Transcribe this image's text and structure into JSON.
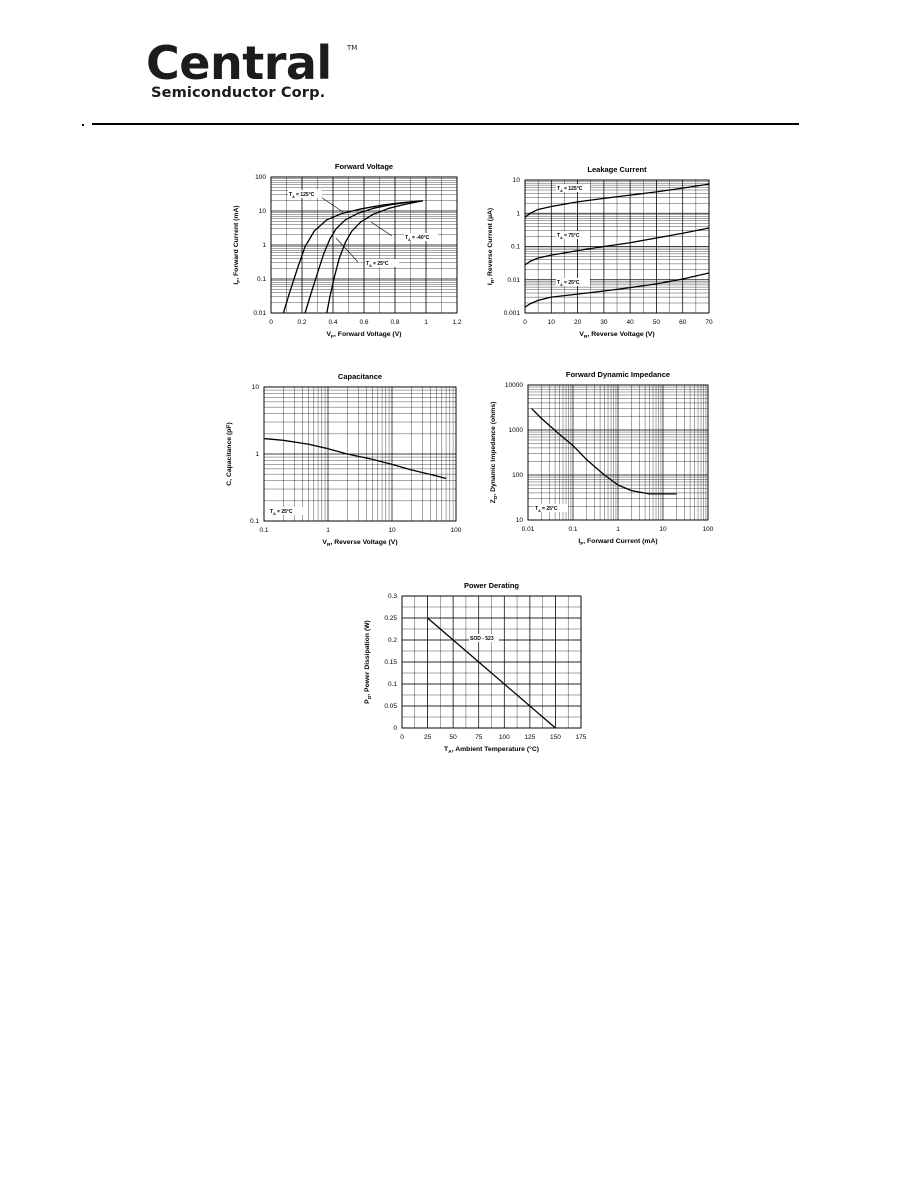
{
  "header": {
    "logo_main": "Central",
    "logo_tm": "TM",
    "logo_sub": "Semiconductor Corp."
  },
  "chart_data": [
    {
      "id": "forward-voltage",
      "type": "line",
      "title": "Forward Voltage",
      "ylabel_sym": "I",
      "ylabel_sub": "F",
      "ylabel_rest": ", Forward Current (mA)",
      "xlabel_sym": "V",
      "xlabel_sub": "F",
      "xlabel_rest": ", Forward Voltage (V)",
      "xscale": "linear",
      "yscale": "log",
      "xlim": [
        0,
        1.2
      ],
      "ylim": [
        0.01,
        100
      ],
      "xticks": [
        0,
        0.2,
        0.4,
        0.6,
        0.8,
        1,
        1.2
      ],
      "xtick_labels": [
        "0",
        "0.2",
        "0.4",
        "0.6",
        "0.8",
        "1",
        "1.2"
      ],
      "yticks": [
        0.01,
        0.1,
        1,
        10,
        100
      ],
      "ytick_labels": [
        "0.01",
        "0.1",
        "1",
        "10",
        "100"
      ],
      "series": [
        {
          "name": "TA = 125°C",
          "x": [
            0.08,
            0.12,
            0.17,
            0.22,
            0.28,
            0.36,
            0.46,
            0.58,
            0.72,
            0.84,
            0.98
          ],
          "y": [
            0.01,
            0.04,
            0.2,
            0.9,
            2.6,
            5.5,
            8.5,
            11.5,
            15,
            17.5,
            20
          ]
        },
        {
          "name": "TA = 25°C",
          "x": [
            0.22,
            0.26,
            0.3,
            0.34,
            0.38,
            0.42,
            0.48,
            0.56,
            0.66,
            0.78,
            0.96
          ],
          "y": [
            0.01,
            0.04,
            0.15,
            0.55,
            1.5,
            3,
            5.5,
            8.5,
            12,
            15.5,
            20
          ]
        },
        {
          "name": "TA = -40°C",
          "x": [
            0.36,
            0.38,
            0.41,
            0.44,
            0.48,
            0.52,
            0.58,
            0.66,
            0.76,
            0.86,
            0.98
          ],
          "y": [
            0.01,
            0.03,
            0.12,
            0.4,
            1.2,
            2.5,
            4.8,
            8,
            12,
            15.5,
            20
          ]
        }
      ],
      "annotations": [
        {
          "sym": "T",
          "sub": "A",
          "rest": " = 125°C"
        },
        {
          "sym": "T",
          "sub": "A",
          "rest": " = -40°C"
        },
        {
          "sym": "T",
          "sub": "A",
          "rest": " = 25°C"
        }
      ]
    },
    {
      "id": "leakage-current",
      "type": "line",
      "title": "Leakage Current",
      "ylabel_sym": "I",
      "ylabel_sub": "R",
      "ylabel_rest": ", Reverse Current (µA)",
      "xlabel_sym": "V",
      "xlabel_sub": "R",
      "xlabel_rest": ", Reverse Voltage (V)",
      "xscale": "linear",
      "yscale": "log",
      "xlim": [
        0,
        70
      ],
      "ylim": [
        0.001,
        10
      ],
      "xticks": [
        0,
        10,
        20,
        30,
        40,
        50,
        60,
        70
      ],
      "xtick_labels": [
        "0",
        "10",
        "20",
        "30",
        "40",
        "50",
        "60",
        "70"
      ],
      "yticks": [
        0.001,
        0.01,
        0.1,
        1,
        10
      ],
      "ytick_labels": [
        "0.001",
        "0.01",
        "0.1",
        "1",
        "10"
      ],
      "series": [
        {
          "name": "TA = 125°C",
          "x": [
            0,
            2,
            5,
            10,
            20,
            30,
            40,
            50,
            60,
            70
          ],
          "y": [
            0.75,
            1.0,
            1.3,
            1.6,
            2.2,
            2.8,
            3.5,
            4.4,
            5.7,
            7.5
          ]
        },
        {
          "name": "TA = 75°C",
          "x": [
            0,
            2,
            5,
            10,
            20,
            30,
            40,
            50,
            60,
            70
          ],
          "y": [
            0.028,
            0.036,
            0.045,
            0.055,
            0.075,
            0.1,
            0.13,
            0.18,
            0.25,
            0.36
          ]
        },
        {
          "name": "TA = 25°C",
          "x": [
            0,
            2,
            5,
            10,
            20,
            30,
            40,
            50,
            60,
            70
          ],
          "y": [
            0.0015,
            0.0019,
            0.0024,
            0.003,
            0.0037,
            0.0046,
            0.0058,
            0.0075,
            0.0105,
            0.016
          ]
        }
      ],
      "annotations": [
        {
          "sym": "T",
          "sub": "A",
          "rest": " = 125°C"
        },
        {
          "sym": "T",
          "sub": "A",
          "rest": " = 75°C"
        },
        {
          "sym": "T",
          "sub": "A",
          "rest": " = 25°C"
        }
      ]
    },
    {
      "id": "capacitance",
      "type": "line",
      "title": "Capacitance",
      "ylabel_sym": "C",
      "ylabel_sub": "",
      "ylabel_rest": ", Capacitance (pF)",
      "xlabel_sym": "V",
      "xlabel_sub": "R",
      "xlabel_rest": ", Reverse Voltage (V)",
      "xscale": "log",
      "yscale": "log",
      "xlim": [
        0.1,
        100
      ],
      "ylim": [
        0.1,
        10
      ],
      "xticks": [
        0.1,
        1,
        10,
        100
      ],
      "xtick_labels": [
        "0.1",
        "1",
        "10",
        "100"
      ],
      "yticks": [
        0.1,
        1,
        10
      ],
      "ytick_labels": [
        "0.1",
        "1",
        "10"
      ],
      "series": [
        {
          "name": "TA = 25°C",
          "x": [
            0.1,
            0.2,
            0.5,
            1,
            2,
            5,
            10,
            20,
            50,
            70
          ],
          "y": [
            1.7,
            1.6,
            1.4,
            1.2,
            1.0,
            0.83,
            0.7,
            0.58,
            0.47,
            0.43
          ]
        }
      ],
      "annotations": [
        {
          "sym": "T",
          "sub": "A",
          "rest": " = 25°C"
        }
      ]
    },
    {
      "id": "forward-dynamic-impedance",
      "type": "line",
      "title": "Forward Dynamic Impedance",
      "ylabel_sym": "Z",
      "ylabel_sub": "D",
      "ylabel_rest": ", Dynamic Impedance (ohms)",
      "xlabel_sym": "I",
      "xlabel_sub": "F",
      "xlabel_rest": ", Forward Current (mA)",
      "xscale": "log",
      "yscale": "log",
      "xlim": [
        0.01,
        100
      ],
      "ylim": [
        10,
        10000
      ],
      "xticks": [
        0.01,
        0.1,
        1,
        10,
        100
      ],
      "xtick_labels": [
        "0.01",
        "0.1",
        "1",
        "10",
        "100"
      ],
      "yticks": [
        10,
        100,
        1000,
        10000
      ],
      "ytick_labels": [
        "10",
        "100",
        "1000",
        "10000"
      ],
      "series": [
        {
          "name": "TA = 25°C",
          "x": [
            0.012,
            0.02,
            0.05,
            0.1,
            0.2,
            0.5,
            1,
            2,
            5,
            10,
            20
          ],
          "y": [
            3000,
            1800,
            800,
            450,
            220,
            100,
            60,
            45,
            38,
            38,
            38
          ]
        }
      ],
      "annotations": [
        {
          "sym": "T",
          "sub": "A",
          "rest": " = 25°C"
        }
      ]
    },
    {
      "id": "power-derating",
      "type": "line",
      "title": "Power Derating",
      "ylabel_sym": "P",
      "ylabel_sub": "D",
      "ylabel_rest": ", Power Dissipation (W)",
      "xlabel_sym": "T",
      "xlabel_sub": "A",
      "xlabel_rest": ", Ambient Temperature (°C)",
      "xscale": "linear",
      "yscale": "linear",
      "xlim": [
        0,
        175
      ],
      "ylim": [
        0,
        0.3
      ],
      "xticks": [
        0,
        25,
        50,
        75,
        100,
        125,
        150,
        175
      ],
      "xtick_labels": [
        "0",
        "25",
        "50",
        "75",
        "100",
        "125",
        "150",
        "175"
      ],
      "yticks": [
        0,
        0.05,
        0.1,
        0.15,
        0.2,
        0.25,
        0.3
      ],
      "ytick_labels": [
        "0",
        "0.05",
        "0.1",
        "0.15",
        "0.2",
        "0.25",
        "0.3"
      ],
      "series": [
        {
          "name": "SOD - 523",
          "x": [
            25,
            150
          ],
          "y": [
            0.25,
            0
          ]
        }
      ],
      "annotations": [
        {
          "sym": "",
          "sub": "",
          "rest": "SOD - 523"
        }
      ]
    }
  ]
}
